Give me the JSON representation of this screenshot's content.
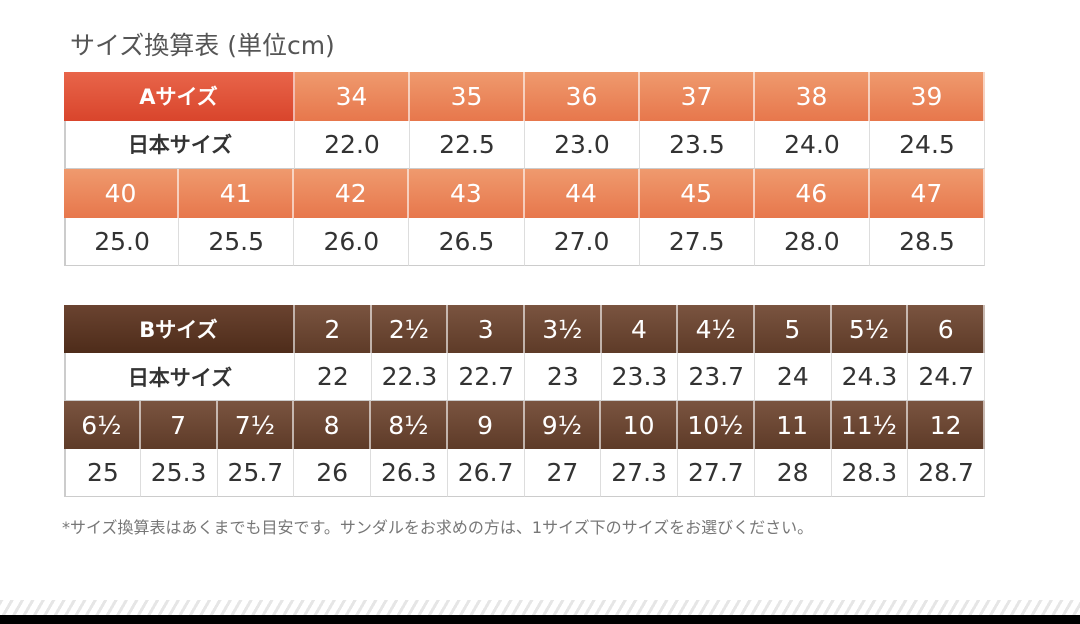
{
  "title": "サイズ換算表 (単位cm)",
  "table_a": {
    "rows": [
      [
        "Aサイズ",
        "34",
        "35",
        "36",
        "37",
        "38",
        "39"
      ],
      [
        "日本サイズ",
        "22.0",
        "22.5",
        "23.0",
        "23.5",
        "24.0",
        "24.5"
      ],
      [
        "40",
        "41",
        "42",
        "43",
        "44",
        "45",
        "46",
        "47"
      ],
      [
        "25.0",
        "25.5",
        "26.0",
        "26.5",
        "27.0",
        "27.5",
        "28.0",
        "28.5"
      ]
    ]
  },
  "table_b": {
    "rows": [
      [
        "Bサイズ",
        "2",
        "2½",
        "3",
        "3½",
        "4",
        "4½",
        "5",
        "5½",
        "6"
      ],
      [
        "日本サイズ",
        "22",
        "22.3",
        "22.7",
        "23",
        "23.3",
        "23.7",
        "24",
        "24.3",
        "24.7"
      ],
      [
        "6½",
        "7",
        "7½",
        "8",
        "8½",
        "9",
        "9½",
        "10",
        "10½",
        "11",
        "11½",
        "12"
      ],
      [
        "25",
        "25.3",
        "25.7",
        "26",
        "26.3",
        "26.7",
        "27",
        "27.3",
        "27.7",
        "28",
        "28.3",
        "28.7"
      ]
    ]
  },
  "footnote": "*サイズ換算表はあくまでも目安です。サンダルをお求めの方は、1サイズ下のサイズをお選びください。"
}
